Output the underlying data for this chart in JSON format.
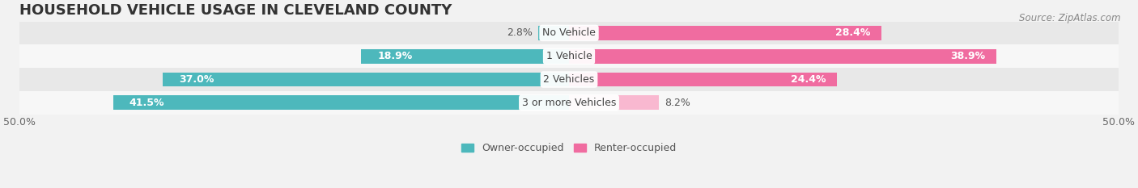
{
  "title": "HOUSEHOLD VEHICLE USAGE IN CLEVELAND COUNTY",
  "source": "Source: ZipAtlas.com",
  "categories": [
    "No Vehicle",
    "1 Vehicle",
    "2 Vehicles",
    "3 or more Vehicles"
  ],
  "owner_values": [
    2.8,
    18.9,
    37.0,
    41.5
  ],
  "renter_values": [
    28.4,
    38.9,
    24.4,
    8.2
  ],
  "owner_color": "#4db8bc",
  "renter_color": "#f06ca0",
  "renter_color_light": "#f9b8d0",
  "owner_label": "Owner-occupied",
  "renter_label": "Renter-occupied",
  "xlim": [
    -50,
    50
  ],
  "bar_height": 0.62,
  "bg_color": "#f2f2f2",
  "row_colors": [
    "#e8e8e8",
    "#f7f7f7"
  ],
  "title_fontsize": 13,
  "source_fontsize": 8.5,
  "label_fontsize": 9,
  "tick_fontsize": 9,
  "legend_fontsize": 9
}
